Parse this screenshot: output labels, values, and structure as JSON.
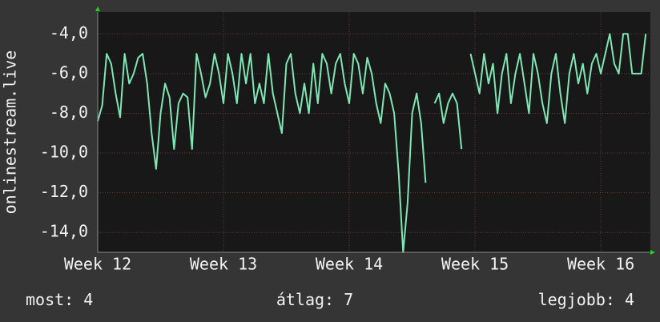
{
  "chart_data": {
    "type": "line",
    "y_label": "onlinestream.live",
    "color": "#7fe6b4",
    "grid": true,
    "x": [
      0,
      0.25,
      0.5,
      0.75,
      1,
      1.25,
      1.5,
      1.75,
      2,
      2.25,
      2.5,
      2.75,
      3,
      3.25,
      3.5,
      3.75,
      4,
      4.25,
      4.5,
      4.75,
      5,
      5.25,
      5.5,
      5.75,
      6,
      6.25,
      6.5,
      6.75,
      7,
      7.25,
      7.5,
      7.75,
      8,
      8.25,
      8.5,
      8.75,
      9,
      9.25,
      9.5,
      9.75,
      10,
      10.25,
      10.5,
      10.75,
      11,
      11.25,
      11.5,
      11.75,
      12,
      12.25,
      12.5,
      12.75,
      13,
      13.25,
      13.5,
      13.75,
      14,
      14.25,
      14.5,
      14.75,
      15,
      15.25,
      15.5,
      15.75,
      16,
      16.25,
      16.5,
      16.75,
      17,
      17.25,
      17.5,
      17.75,
      18,
      18.25,
      18.5,
      18.75,
      19,
      19.25,
      19.5,
      19.75,
      20,
      20.25,
      20.5,
      20.75,
      21,
      21.25,
      21.5,
      21.75,
      22,
      22.25,
      22.5,
      22.75,
      23,
      23.25,
      23.5,
      23.75,
      24,
      24.25,
      24.5,
      24.75,
      25,
      25.25,
      25.5,
      25.75,
      26,
      26.25,
      26.5,
      26.75,
      27,
      27.25,
      27.5,
      27.75,
      28,
      28.25,
      28.5,
      28.75,
      29,
      29.25,
      29.5,
      29.75,
      30,
      30.25,
      30.5
    ],
    "values": [
      -8.4,
      -7.6,
      -5.0,
      -5.5,
      -7.0,
      -8.2,
      -5.0,
      -6.5,
      -6.0,
      -5.2,
      -5.0,
      -6.5,
      -9.0,
      -10.8,
      -8.0,
      -6.5,
      -7.2,
      -9.8,
      -7.5,
      -7.0,
      -7.2,
      -9.8,
      -5.0,
      -6.0,
      -7.2,
      -6.5,
      -5.0,
      -6.0,
      -7.5,
      -5.0,
      -6.0,
      -7.5,
      -5.0,
      -6.5,
      -5.0,
      -7.5,
      -6.5,
      -7.5,
      -5.0,
      -7.0,
      -8.0,
      -9.0,
      -5.5,
      -5.0,
      -7.0,
      -8.0,
      -6.5,
      -8.0,
      -5.5,
      -7.5,
      -5.0,
      -5.5,
      -7.0,
      -5.5,
      -5.0,
      -6.5,
      -7.5,
      -5.0,
      -5.5,
      -7.0,
      -5.2,
      -6.0,
      -7.5,
      -8.5,
      -6.5,
      -7.0,
      -8.0,
      -11.0,
      -15.0,
      -12.5,
      -8.0,
      -7.0,
      -8.5,
      -11.5,
      null,
      -7.5,
      -7.0,
      -8.5,
      -7.5,
      -7.0,
      -7.5,
      -9.8,
      null,
      -5.0,
      -6.0,
      -7.0,
      -5.0,
      -6.5,
      -5.5,
      -8.0,
      -6.0,
      -5.0,
      -7.5,
      -6.0,
      -5.0,
      -6.5,
      -8.0,
      -5.0,
      -6.0,
      -7.5,
      -8.5,
      -6.0,
      -5.0,
      -7.0,
      -8.5,
      -6.0,
      -5.0,
      -6.5,
      -5.5,
      -7.0,
      -5.5,
      -5.0,
      -6.0,
      -5.0,
      -4.0,
      -5.5,
      -6.0,
      -4.0,
      -4.0,
      -6.0,
      -6.0,
      -6.0,
      -4.0
    ],
    "xlim": [
      0,
      30.76
    ],
    "xticks": [
      {
        "value": 0,
        "label": "Week 12"
      },
      {
        "value": 7,
        "label": "Week 13"
      },
      {
        "value": 14,
        "label": "Week 14"
      },
      {
        "value": 21,
        "label": "Week 15"
      },
      {
        "value": 28,
        "label": "Week 16"
      }
    ],
    "ylim": [
      -15.0,
      -2.9
    ],
    "yticks": [
      {
        "value": -4,
        "label": "-4,0"
      },
      {
        "value": -6,
        "label": "-6,0"
      },
      {
        "value": -8,
        "label": "-8,0"
      },
      {
        "value": -10,
        "label": "-10,0"
      },
      {
        "value": -12,
        "label": "-12,0"
      },
      {
        "value": -14,
        "label": "-14,0"
      }
    ],
    "summary": [
      {
        "label": "most:",
        "value": 4
      },
      {
        "label": "átlag:",
        "value": 7
      },
      {
        "label": "legjobb:",
        "value": 4
      }
    ]
  }
}
